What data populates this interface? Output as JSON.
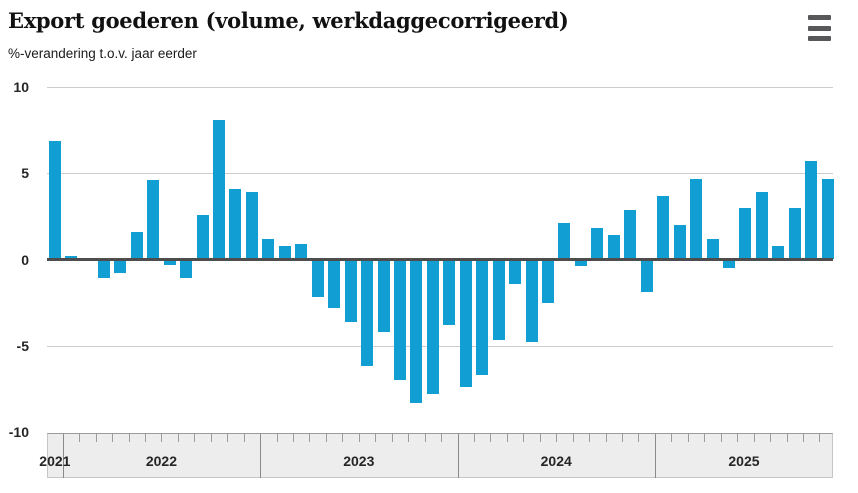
{
  "header": {
    "title": "Export goederen (volume, werkdaggecorrigeerd)",
    "subtitle": "%-verandering t.o.v. jaar eerder",
    "menu_icon": "hamburger-menu-icon"
  },
  "colors": {
    "bar": "#119ed2",
    "zero_line": "#4d4d4d",
    "gridline": "#cccccc",
    "axis_band_bg": "#ededed",
    "axis_band_border": "#c6c6c6",
    "tick_short": "#9b9b9b",
    "tick_long": "#8a8a8a",
    "text": "#262626"
  },
  "chart_data": {
    "type": "bar",
    "title": "Export goederen (volume, werkdaggecorrigeerd)",
    "subtitle": "%-verandering t.o.v. jaar eerder",
    "x_unit": "month",
    "categories": [
      "2021-12",
      "2022-01",
      "2022-02",
      "2022-03",
      "2022-04",
      "2022-05",
      "2022-06",
      "2022-07",
      "2022-08",
      "2022-09",
      "2022-10",
      "2022-11",
      "2022-12",
      "2023-01",
      "2023-02",
      "2023-03",
      "2023-04",
      "2023-05",
      "2023-06",
      "2023-07",
      "2023-08",
      "2023-09",
      "2023-10",
      "2023-11",
      "2023-12",
      "2024-01",
      "2024-02",
      "2024-03",
      "2024-04",
      "2024-05",
      "2024-06",
      "2024-07",
      "2024-08",
      "2024-09",
      "2024-10",
      "2024-11",
      "2024-12",
      "2025-01",
      "2025-02",
      "2025-03",
      "2025-04",
      "2025-05",
      "2025-06",
      "2025-07",
      "2025-08",
      "2025-09",
      "2025-10",
      "2025-11"
    ],
    "values": [
      6.9,
      0.2,
      0.0,
      -1.1,
      -0.8,
      1.6,
      4.6,
      -0.3,
      -1.1,
      2.6,
      8.1,
      4.1,
      3.9,
      1.2,
      0.8,
      0.9,
      -2.2,
      -2.8,
      -3.6,
      -6.2,
      -4.2,
      -7.0,
      -8.3,
      -7.8,
      -3.8,
      -7.4,
      -6.7,
      -4.7,
      -1.4,
      -4.8,
      -2.5,
      2.1,
      -0.4,
      1.8,
      1.4,
      2.9,
      -1.9,
      3.7,
      2.0,
      4.7,
      1.2,
      -0.5,
      3.0,
      3.9,
      0.8,
      3.0,
      5.7,
      4.7
    ],
    "ylim": [
      -10,
      10
    ],
    "yticks": [
      10,
      5,
      0,
      -5,
      -10
    ],
    "ytick_labels": [
      "10",
      "5",
      "0",
      "-5",
      "-10"
    ],
    "year_labels": [
      "2021",
      "2022",
      "2023",
      "2024",
      "2025"
    ],
    "year_start_indices": [
      0,
      1,
      13,
      25,
      37
    ],
    "grid": true,
    "legend": false
  }
}
